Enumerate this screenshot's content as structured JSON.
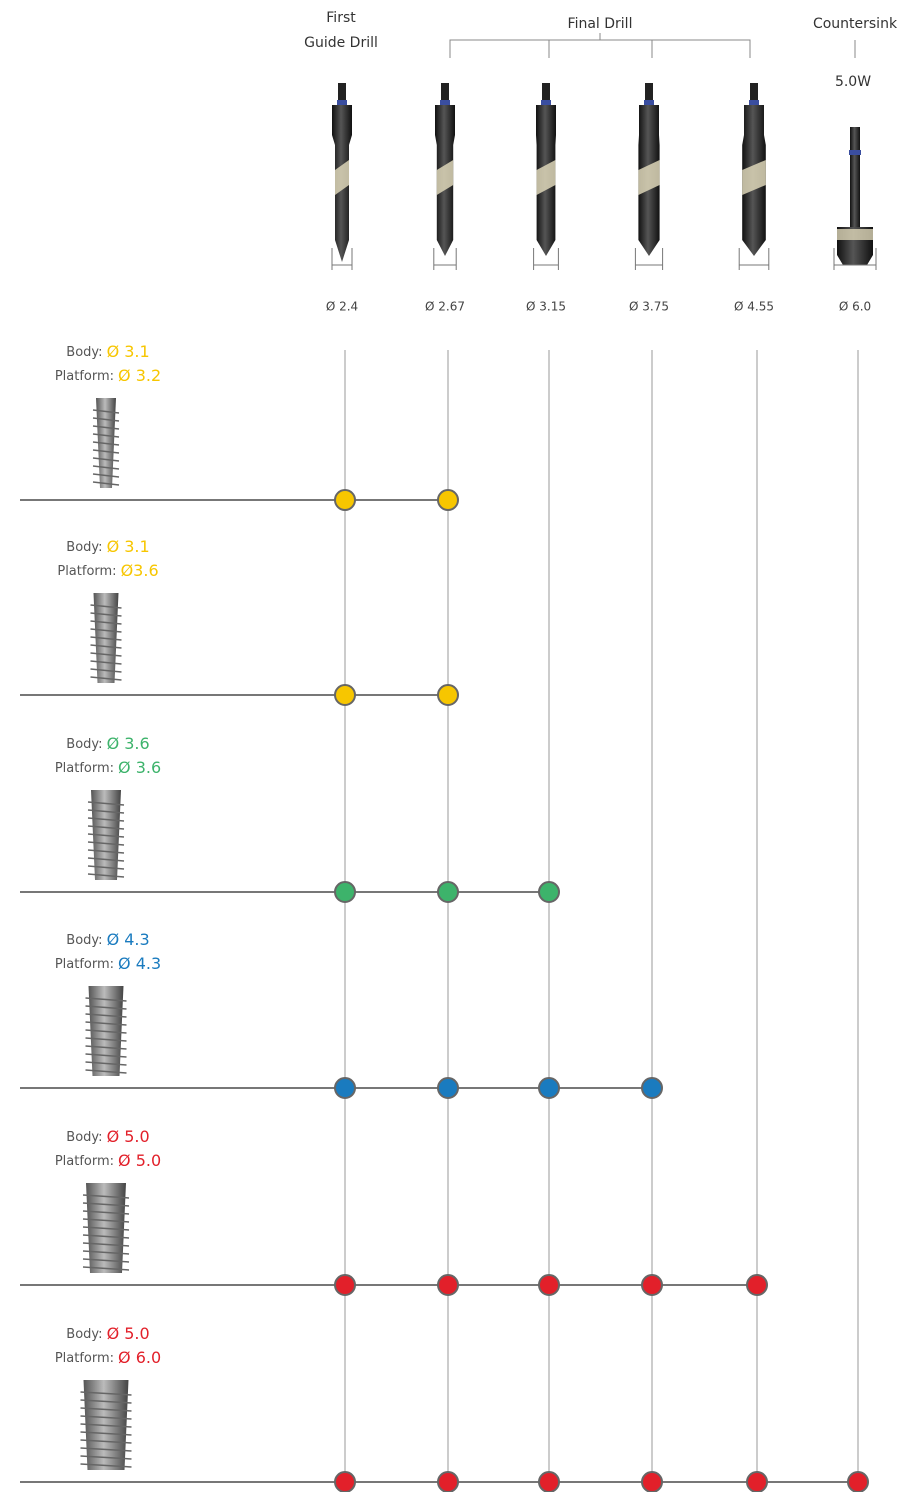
{
  "header": {
    "first_guide_drill": [
      "First",
      "Guide Drill"
    ],
    "final_drill": "Final Drill",
    "countersink": "Countersink",
    "countersink_size": "5.0W"
  },
  "drills": [
    "Ø 2.4",
    "Ø 2.67",
    "Ø 3.15",
    "Ø 3.75",
    "Ø 4.55",
    "Ø 6.0"
  ],
  "rows": [
    {
      "body_label": "Body:",
      "body": "Ø 3.1",
      "platform_label": "Platform:",
      "platform": "Ø 3.2",
      "color": "#f7c600",
      "drills": 2
    },
    {
      "body_label": "Body:",
      "body": "Ø 3.1",
      "platform_label": "Platform:",
      "platform": "Ø3.6",
      "color": "#f7c600",
      "drills": 2
    },
    {
      "body_label": "Body:",
      "body": "Ø 3.6",
      "platform_label": "Platform:",
      "platform": "Ø 3.6",
      "color": "#3db36b",
      "drills": 3
    },
    {
      "body_label": "Body:",
      "body": "Ø 4.3",
      "platform_label": "Platform:",
      "platform": "Ø 4.3",
      "color": "#1a7bbf",
      "drills": 4
    },
    {
      "body_label": "Body:",
      "body": "Ø 5.0",
      "platform_label": "Platform:",
      "platform": "Ø 5.0",
      "color": "#e2202a",
      "drills": 5
    },
    {
      "body_label": "Body:",
      "body": "Ø 5.0",
      "platform_label": "Platform:",
      "platform": "Ø 6.0",
      "color": "#e2202a",
      "drills": 6
    }
  ]
}
